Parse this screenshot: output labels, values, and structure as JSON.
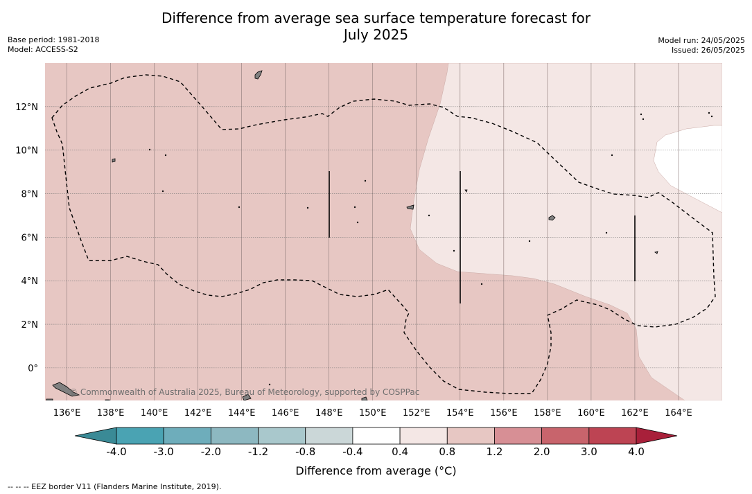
{
  "title_line1": "Difference from average sea surface temperature forecast for",
  "title_line2": "July 2025",
  "meta_left": [
    "Base period: 1981-2018",
    "Model: ACCESS-S2"
  ],
  "meta_right": [
    "Model run: 24/05/2025",
    "Issued: 26/05/2025"
  ],
  "lon_ticks": [
    {
      "value": 136,
      "label": "136°E"
    },
    {
      "value": 138,
      "label": "138°E"
    },
    {
      "value": 140,
      "label": "140°E"
    },
    {
      "value": 142,
      "label": "142°E"
    },
    {
      "value": 144,
      "label": "144°E"
    },
    {
      "value": 146,
      "label": "146°E"
    },
    {
      "value": 148,
      "label": "148°E"
    },
    {
      "value": 150,
      "label": "150°E"
    },
    {
      "value": 152,
      "label": "152°E"
    },
    {
      "value": 154,
      "label": "154°E"
    },
    {
      "value": 156,
      "label": "156°E"
    },
    {
      "value": 158,
      "label": "158°E"
    },
    {
      "value": 160,
      "label": "160°E"
    },
    {
      "value": 162,
      "label": "162°E"
    },
    {
      "value": 164,
      "label": "164°E"
    }
  ],
  "lat_ticks": [
    {
      "value": 0,
      "label": "0°"
    },
    {
      "value": 2,
      "label": "2°N"
    },
    {
      "value": 4,
      "label": "4°N"
    },
    {
      "value": 6,
      "label": "6°N"
    },
    {
      "value": 8,
      "label": "8°N"
    },
    {
      "value": 10,
      "label": "10°N"
    },
    {
      "value": 12,
      "label": "12°N"
    }
  ],
  "map_extent": {
    "lon": [
      135,
      166
    ],
    "lat": [
      -1.5,
      14
    ]
  },
  "colorbar": {
    "colors": [
      "#3a8a96",
      "#4aa3b3",
      "#6eadbb",
      "#8db8c1",
      "#a9c8cc",
      "#cbd7d8",
      "#ffffff",
      "#f4e7e5",
      "#e7c7c3",
      "#d78f95",
      "#c8646c",
      "#bd4453",
      "#a8203a"
    ],
    "tick_labels": [
      "-4.0",
      "-3.0",
      "-2.0",
      "-1.2",
      "-0.8",
      "-0.4",
      "0.4",
      "0.8",
      "1.2",
      "2.0",
      "3.0",
      "4.0"
    ],
    "label": "Difference from average (°C)"
  },
  "colors": {
    "anomaly_0_8_to_1_2": "#e7c7c3",
    "anomaly_0_4_to_0_8": "#f4e7e5",
    "anomaly_neutral": "#ffffff",
    "land": "#808080"
  },
  "credit": "© Commonwealth of Australia 2025, Bureau of Meteorology, supported by COSPPac",
  "footer": "-- -- -- EEZ border V11 (Flanders Marine Institute, 2019)."
}
